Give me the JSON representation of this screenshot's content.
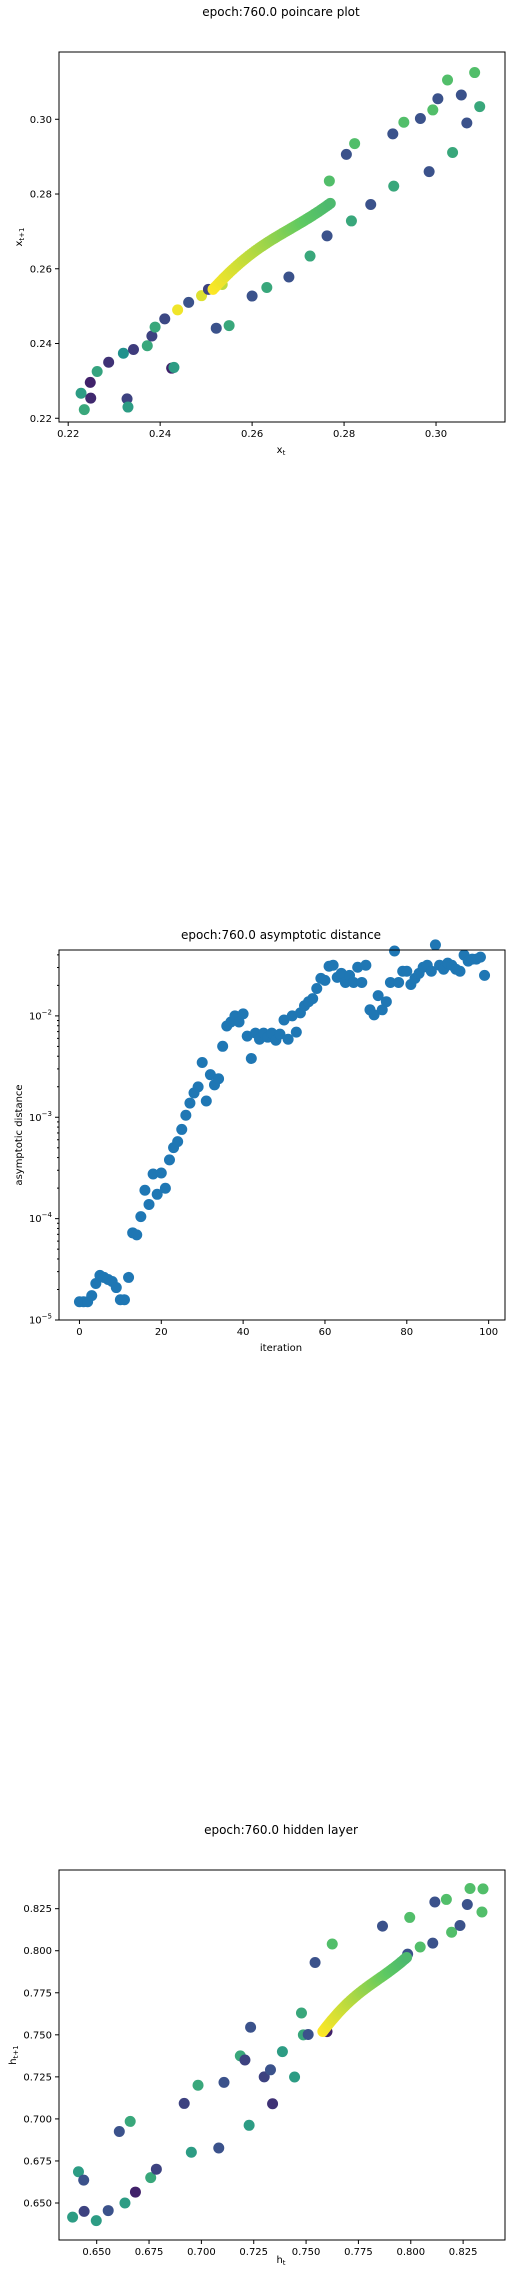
{
  "chart_data": [
    {
      "type": "scatter",
      "title": "epoch:760.0 poincare plot",
      "xlabel": "x",
      "xlabel_sub": "t",
      "ylabel": "x",
      "ylabel_sub": "t+1",
      "xlim": [
        0.218,
        0.315
      ],
      "ylim": [
        0.219,
        0.318
      ],
      "xticks": [
        0.22,
        0.24,
        0.26,
        0.28,
        0.3
      ],
      "xtick_labels": [
        "0.22",
        "0.24",
        "0.26",
        "0.28",
        "0.30"
      ],
      "yticks": [
        0.22,
        0.24,
        0.26,
        0.28,
        0.3
      ],
      "ytick_labels": [
        "0.22",
        "0.24",
        "0.26",
        "0.28",
        "0.30"
      ],
      "colormap": [
        "#440154",
        "#3b528b",
        "#21918c",
        "#5ec962",
        "#fde725"
      ],
      "points": [
        [
          0.2228,
          0.2267,
          0.55
        ],
        [
          0.2235,
          0.2223,
          0.6
        ],
        [
          0.2248,
          0.2296,
          0.1
        ],
        [
          0.2249,
          0.2254,
          0.12
        ],
        [
          0.2263,
          0.2325,
          0.58
        ],
        [
          0.2288,
          0.235,
          0.15
        ],
        [
          0.232,
          0.2374,
          0.5
        ],
        [
          0.2328,
          0.2252,
          0.2
        ],
        [
          0.233,
          0.223,
          0.55
        ],
        [
          0.2342,
          0.2384,
          0.18
        ],
        [
          0.2372,
          0.2394,
          0.6
        ],
        [
          0.2382,
          0.242,
          0.2
        ],
        [
          0.2389,
          0.2444,
          0.6
        ],
        [
          0.241,
          0.2466,
          0.22
        ],
        [
          0.2425,
          0.2334,
          0.1
        ],
        [
          0.243,
          0.2336,
          0.55
        ],
        [
          0.2438,
          0.249,
          0.98
        ],
        [
          0.2462,
          0.251,
          0.25
        ],
        [
          0.249,
          0.2528,
          0.95
        ],
        [
          0.2505,
          0.2545,
          0.2
        ],
        [
          0.2522,
          0.2441,
          0.25
        ],
        [
          0.2535,
          0.2558,
          0.9
        ],
        [
          0.255,
          0.2448,
          0.6
        ],
        [
          0.26,
          0.2527,
          0.25
        ],
        [
          0.2632,
          0.255,
          0.6
        ],
        [
          0.268,
          0.2578,
          0.25
        ],
        [
          0.2726,
          0.2634,
          0.6
        ],
        [
          0.2763,
          0.2688,
          0.25
        ],
        [
          0.2768,
          0.2835,
          0.7
        ],
        [
          0.2805,
          0.2906,
          0.25
        ],
        [
          0.2816,
          0.2728,
          0.6
        ],
        [
          0.2823,
          0.2935,
          0.7
        ],
        [
          0.2858,
          0.2772,
          0.25
        ],
        [
          0.2906,
          0.2961,
          0.25
        ],
        [
          0.2908,
          0.2821,
          0.6
        ],
        [
          0.293,
          0.2992,
          0.7
        ],
        [
          0.2966,
          0.3002,
          0.25
        ],
        [
          0.2985,
          0.286,
          0.25
        ],
        [
          0.2993,
          0.3025,
          0.7
        ],
        [
          0.3004,
          0.3055,
          0.25
        ],
        [
          0.3025,
          0.3105,
          0.7
        ],
        [
          0.3036,
          0.2911,
          0.6
        ],
        [
          0.3055,
          0.3065,
          0.25
        ],
        [
          0.3067,
          0.299,
          0.25
        ],
        [
          0.3084,
          0.3125,
          0.7
        ],
        [
          0.3095,
          0.3034,
          0.6
        ]
      ],
      "dense_curve": {
        "x_start": 0.2515,
        "x_end": 0.277,
        "y_start": 0.2545,
        "y_end": 0.2775,
        "count": 60
      }
    },
    {
      "type": "scatter",
      "title": "epoch:760.0 asymptotic distance",
      "xlabel": "iteration",
      "ylabel": "asymptotic distance",
      "yscale": "log",
      "xlim": [
        -5,
        104
      ],
      "ylim_log10": [
        -5,
        -1.35
      ],
      "xticks": [
        0,
        20,
        40,
        60,
        80,
        100
      ],
      "xtick_labels": [
        "0",
        "20",
        "40",
        "60",
        "80",
        "100"
      ],
      "yticks_log10": [
        -5,
        -4,
        -3,
        -2
      ],
      "ytick_base": "10",
      "ytick_exponents": [
        "−5",
        "−4",
        "−3",
        "−2"
      ],
      "color": "#1f77b4",
      "x": [
        0,
        1,
        2,
        3,
        4,
        5,
        6,
        7,
        8,
        9,
        10,
        11,
        12,
        13,
        14,
        15,
        16,
        17,
        18,
        19,
        20,
        21,
        22,
        23,
        24,
        25,
        26,
        27,
        28,
        29,
        30,
        31,
        32,
        33,
        34,
        35,
        36,
        37,
        38,
        39,
        40,
        41,
        42,
        43,
        44,
        45,
        46,
        47,
        48,
        49,
        50,
        51,
        52,
        53,
        54,
        55,
        56,
        57,
        58,
        59,
        60,
        61,
        62,
        63,
        64,
        65,
        66,
        67,
        68,
        69,
        70,
        71,
        72,
        73,
        74,
        75,
        76,
        77,
        78,
        79,
        80,
        81,
        82,
        83,
        84,
        85,
        86,
        87,
        88,
        89,
        90,
        91,
        92,
        93,
        94,
        95,
        96,
        97,
        98,
        99
      ],
      "y_log10": [
        -4.82,
        -4.82,
        -4.82,
        -4.76,
        -4.64,
        -4.56,
        -4.58,
        -4.6,
        -4.62,
        -4.68,
        -4.8,
        -4.8,
        -4.58,
        -4.14,
        -4.16,
        -3.98,
        -3.72,
        -3.86,
        -3.56,
        -3.76,
        -3.55,
        -3.7,
        -3.42,
        -3.3,
        -3.24,
        -3.12,
        -2.98,
        -2.86,
        -2.76,
        -2.7,
        -2.46,
        -2.84,
        -2.58,
        -2.68,
        -2.62,
        -2.3,
        -2.1,
        -2.06,
        -2.0,
        -2.06,
        -1.98,
        -2.2,
        -2.42,
        -2.17,
        -2.23,
        -2.17,
        -2.21,
        -2.17,
        -2.24,
        -2.18,
        -2.04,
        -2.23,
        -2.0,
        -2.16,
        -1.97,
        -1.9,
        -1.86,
        -1.83,
        -1.73,
        -1.63,
        -1.65,
        -1.51,
        -1.5,
        -1.62,
        -1.58,
        -1.67,
        -1.6,
        -1.67,
        -1.52,
        -1.67,
        -1.5,
        -1.94,
        -1.99,
        -1.8,
        -1.94,
        -1.86,
        -1.67,
        -1.36,
        -1.67,
        -1.56,
        -1.56,
        -1.69,
        -1.63,
        -1.58,
        -1.52,
        -1.5,
        -1.56,
        -1.3,
        -1.5,
        -1.54,
        -1.48,
        -1.5,
        -1.54,
        -1.56,
        -1.4,
        -1.46,
        -1.44,
        -1.44,
        -1.42,
        -1.6
      ]
    },
    {
      "type": "scatter",
      "title": "epoch:760.0 hidden layer",
      "xlabel": "h",
      "xlabel_sub": "t",
      "ylabel": "h",
      "ylabel_sub": "t+1",
      "xlim": [
        0.632,
        0.845
      ],
      "ylim": [
        0.628,
        0.848
      ],
      "xticks": [
        0.65,
        0.675,
        0.7,
        0.725,
        0.75,
        0.775,
        0.8,
        0.825
      ],
      "xtick_labels": [
        "0.650",
        "0.675",
        "0.700",
        "0.725",
        "0.750",
        "0.775",
        "0.800",
        "0.825"
      ],
      "yticks": [
        0.65,
        0.675,
        0.7,
        0.725,
        0.75,
        0.775,
        0.8,
        0.825
      ],
      "ytick_labels": [
        "0.650",
        "0.675",
        "0.700",
        "0.725",
        "0.750",
        "0.775",
        "0.800",
        "0.825"
      ],
      "colormap": [
        "#440154",
        "#3b528b",
        "#21918c",
        "#5ec962",
        "#fde725"
      ],
      "points": [
        [
          0.6385,
          0.6416,
          0.55
        ],
        [
          0.6413,
          0.6686,
          0.55
        ],
        [
          0.6438,
          0.6636,
          0.25
        ],
        [
          0.644,
          0.645,
          0.2
        ],
        [
          0.6498,
          0.6395,
          0.55
        ],
        [
          0.6555,
          0.6455,
          0.25
        ],
        [
          0.6608,
          0.6925,
          0.25
        ],
        [
          0.6635,
          0.65,
          0.55
        ],
        [
          0.666,
          0.6985,
          0.6
        ],
        [
          0.6685,
          0.6565,
          0.1
        ],
        [
          0.6758,
          0.6651,
          0.6
        ],
        [
          0.6785,
          0.6701,
          0.2
        ],
        [
          0.6918,
          0.7092,
          0.2
        ],
        [
          0.6952,
          0.6802,
          0.55
        ],
        [
          0.6984,
          0.72,
          0.6
        ],
        [
          0.7083,
          0.6827,
          0.25
        ],
        [
          0.7108,
          0.7217,
          0.25
        ],
        [
          0.7186,
          0.7375,
          0.6
        ],
        [
          0.7208,
          0.735,
          0.2
        ],
        [
          0.7228,
          0.6962,
          0.55
        ],
        [
          0.7235,
          0.7545,
          0.25
        ],
        [
          0.73,
          0.725,
          0.2
        ],
        [
          0.733,
          0.7292,
          0.25
        ],
        [
          0.734,
          0.709,
          0.15
        ],
        [
          0.7387,
          0.74,
          0.55
        ],
        [
          0.7445,
          0.7249,
          0.55
        ],
        [
          0.7478,
          0.763,
          0.6
        ],
        [
          0.7487,
          0.75,
          0.6
        ],
        [
          0.751,
          0.7502,
          0.25
        ],
        [
          0.7543,
          0.793,
          0.25
        ],
        [
          0.76,
          0.7519,
          0.1
        ],
        [
          0.7625,
          0.804,
          0.7
        ],
        [
          0.7865,
          0.8146,
          0.25
        ],
        [
          0.7985,
          0.798,
          0.25
        ],
        [
          0.7995,
          0.8198,
          0.7
        ],
        [
          0.8045,
          0.8022,
          0.7
        ],
        [
          0.8105,
          0.8045,
          0.25
        ],
        [
          0.8115,
          0.829,
          0.25
        ],
        [
          0.817,
          0.8305,
          0.7
        ],
        [
          0.8195,
          0.811,
          0.7
        ],
        [
          0.8235,
          0.815,
          0.25
        ],
        [
          0.827,
          0.8275,
          0.25
        ],
        [
          0.8283,
          0.837,
          0.7
        ],
        [
          0.834,
          0.823,
          0.7
        ],
        [
          0.8345,
          0.8368,
          0.7
        ]
      ],
      "dense_curve": {
        "x_start": 0.758,
        "x_end": 0.798,
        "y_start": 0.752,
        "y_end": 0.796,
        "count": 60
      }
    }
  ]
}
